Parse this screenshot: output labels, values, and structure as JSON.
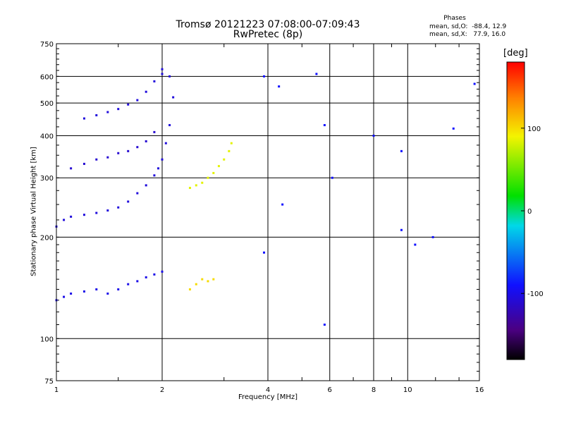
{
  "chart_data": {
    "type": "scatter",
    "title": "Tromsø 20121223 07:08:00-07:09:43",
    "subtitle": "RwPretec (8p)",
    "xlabel": "Frequency [MHz]",
    "ylabel": "Stationary phase Virtual Height [km]",
    "x_scale": "log",
    "y_scale": "log",
    "xlim": [
      1,
      16
    ],
    "ylim": [
      75,
      750
    ],
    "x_ticks": [
      1,
      2,
      4,
      6,
      8,
      10,
      16
    ],
    "y_ticks": [
      75,
      100,
      200,
      300,
      400,
      500,
      600,
      750
    ],
    "grid": true,
    "stats": {
      "title": "Phases",
      "line1": "mean, sd,O:  -88.4, 12.9",
      "line2": "mean, sd,X:   77.9, 16.0"
    },
    "colorbar": {
      "label": "[deg]",
      "range": [
        -180,
        180
      ],
      "ticks": [
        {
          "value": 100,
          "label": "100"
        },
        {
          "value": 0,
          "label": "0"
        },
        {
          "value": -100,
          "label": "-100"
        }
      ]
    },
    "series": [
      {
        "trace": "O-low",
        "phase": -100,
        "points": [
          [
            1.0,
            130
          ],
          [
            1.05,
            133
          ],
          [
            1.1,
            136
          ],
          [
            1.2,
            138
          ],
          [
            1.3,
            140
          ],
          [
            1.4,
            136
          ],
          [
            1.5,
            140
          ],
          [
            1.6,
            145
          ],
          [
            1.7,
            148
          ],
          [
            1.8,
            152
          ],
          [
            1.9,
            155
          ],
          [
            2.0,
            158
          ]
        ]
      },
      {
        "trace": "O-F",
        "phase": -105,
        "points": [
          [
            1.0,
            215
          ],
          [
            1.05,
            225
          ],
          [
            1.1,
            230
          ],
          [
            1.2,
            233
          ],
          [
            1.3,
            236
          ],
          [
            1.4,
            240
          ],
          [
            1.5,
            245
          ],
          [
            1.6,
            255
          ],
          [
            1.7,
            270
          ],
          [
            1.8,
            285
          ],
          [
            1.9,
            305
          ],
          [
            1.95,
            320
          ],
          [
            2.0,
            340
          ],
          [
            2.05,
            380
          ],
          [
            2.1,
            430
          ],
          [
            2.15,
            520
          ],
          [
            2.1,
            600
          ],
          [
            2.0,
            630
          ]
        ]
      },
      {
        "trace": "O-F-upper",
        "phase": -110,
        "points": [
          [
            1.1,
            320
          ],
          [
            1.2,
            330
          ],
          [
            1.3,
            340
          ],
          [
            1.4,
            345
          ],
          [
            1.5,
            355
          ],
          [
            1.6,
            360
          ],
          [
            1.7,
            370
          ],
          [
            1.8,
            385
          ],
          [
            1.9,
            410
          ]
        ]
      },
      {
        "trace": "O-F2",
        "phase": -105,
        "points": [
          [
            1.2,
            450
          ],
          [
            1.3,
            460
          ],
          [
            1.4,
            470
          ],
          [
            1.5,
            480
          ],
          [
            1.6,
            495
          ],
          [
            1.7,
            510
          ],
          [
            1.8,
            540
          ],
          [
            1.9,
            580
          ],
          [
            2.0,
            610
          ]
        ]
      },
      {
        "trace": "X-F",
        "phase": 85,
        "points": [
          [
            2.4,
            280
          ],
          [
            2.5,
            285
          ],
          [
            2.6,
            290
          ],
          [
            2.7,
            300
          ],
          [
            2.8,
            310
          ],
          [
            2.9,
            325
          ],
          [
            3.0,
            340
          ],
          [
            3.1,
            360
          ],
          [
            3.15,
            380
          ]
        ]
      },
      {
        "trace": "X-low",
        "phase": 100,
        "points": [
          [
            2.4,
            140
          ],
          [
            2.5,
            145
          ],
          [
            2.6,
            150
          ],
          [
            2.7,
            148
          ],
          [
            2.8,
            150
          ]
        ]
      },
      {
        "trace": "scattered",
        "phase": -90,
        "points": [
          [
            3.9,
            600
          ],
          [
            4.3,
            560
          ],
          [
            5.5,
            610
          ],
          [
            5.8,
            430
          ],
          [
            6.1,
            300
          ],
          [
            8.0,
            400
          ],
          [
            9.6,
            360
          ],
          [
            9.6,
            210
          ],
          [
            10.5,
            190
          ],
          [
            11.8,
            200
          ],
          [
            13.5,
            420
          ],
          [
            15.5,
            570
          ],
          [
            4.4,
            250
          ],
          [
            3.9,
            180
          ],
          [
            5.8,
            110
          ]
        ]
      }
    ]
  }
}
